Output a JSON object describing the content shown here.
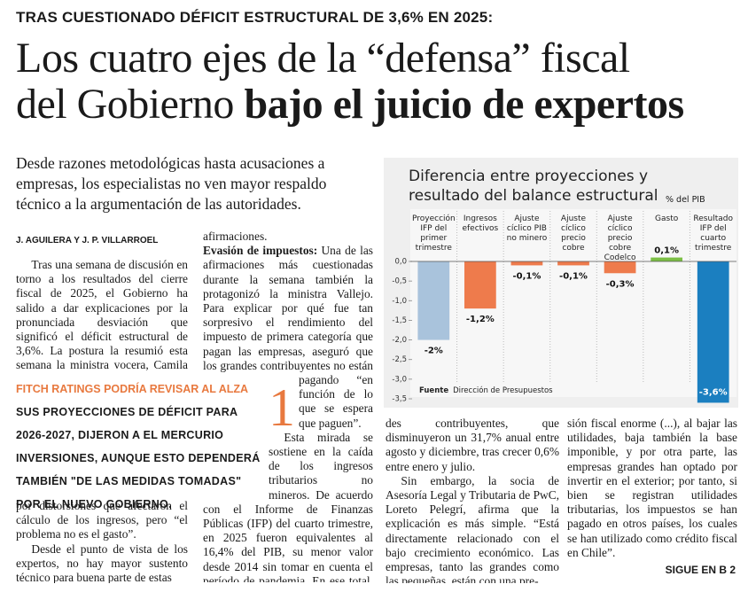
{
  "header": {
    "kicker": "TRAS CUESTIONADO DÉFICIT ESTRUCTURAL DE 3,6% EN 2025:",
    "headline": [
      "Los cuatro ejes de la “defensa” fiscal",
      "del Gobierno"
    ],
    "headline_bold": "bajo el juicio de expertos",
    "lead": "Desde razones metodológicas hasta acusaciones a empresas, los especialistas no ven mayor respaldo técnico a la argumentación de las autoridades.",
    "byline": "J. AGUILERA Y J. P. VILLARROEL"
  },
  "body": {
    "col1": [
      "Tras una semana de discusión en torno a los resultados del cierre fiscal de 2025, el Gobierno ha salido a dar explicaciones por la pronunciada desviación que significó el déficit estructural de 3,6%. La postura la resumió esta semana la ministra vocera, Camila Vallejo, quien resaltó que el déficit pasa"
    ],
    "col1_after_box": [
      "por distorsiones que afectaron el cálculo de los ingresos, pero “el problema no es el gasto”.",
      "Desde el punto de vista de los expertos, no hay mayor sustento técnico para buena parte de estas"
    ],
    "col2_start": "afirmaciones.",
    "point": {
      "number": "1",
      "title": "Evasión de impuestos:",
      "text": "Una de las afirmaciones más cuestionadas durante la semana también la protagonizó la ministra Vallejo. Para explicar por qué fue tan sorpresivo el rendimiento del impuesto de primera categoría que pagan las empresas, aseguró que los grandes contribuyentes no están pagando “en función de lo que se espera que paguen”."
    },
    "col2_rest": [
      "Esta mirada se sostiene en la caída de los ingresos tributarios no mineros. De acuerdo con el Informe de Finanzas Públicas (IFP) del cuarto trimestre, en 2025 fueron equivalentes al 16,4% del PIB, su menor valor desde 2014 sin tomar en cuenta el período de pandemia. En ese total, la mayor sorpresa fue la caída en los aportes de los gran-"
    ],
    "col3": [
      "des contribuyentes, que disminuyeron un 31,7% anual entre agosto y diciembre, tras crecer 0,6% entre enero y julio.",
      "Sin embargo, la socia de Asesoría Legal y Tributaria de PwC, Loreto Pelegrí, afirma que la explicación es más simple. “Está directamente relacionado con el bajo crecimiento económico. Las empresas, tanto las grandes como las pequeñas, están con una pre-"
    ],
    "col4": [
      "sión fiscal enorme (...), al bajar las utilidades, baja también la base imponible, y por otra parte, las empresas grandes han optado por invertir en el exterior; por tanto, si bien se registran utilidades tributarias, los impuestos se han pagado en otros países, los cuales se han utilizado como crédito fiscal en Chile”."
    ]
  },
  "box": {
    "title": "FITCH RATINGS PODRÍA REVISAR AL ALZA",
    "text": "SUS PROYECCIONES DE DÉFICIT PARA 2026-2027, DIJERON A EL MERCURIO INVERSIONES, AUNQUE ESTO DEPENDERÁ TAMBIÉN \"DE LAS MEDIDAS TOMADAS\" POR EL NUEVO GOBIERNO."
  },
  "footer": "SIGUE EN B 2",
  "chart_data": {
    "type": "bar",
    "title": "Diferencia entre proyecciones y resultado del balance estructural",
    "unit": "% del PIB",
    "categories": [
      "Proyección IFP del primer trimestre",
      "Ingresos efectivos",
      "Ajuste cíclico PIB no minero",
      "Ajuste cíclico precio cobre",
      "Ajuste cíclico precio cobre Codelco",
      "Gasto",
      "Resultado IFP del cuarto trimestre"
    ],
    "values": [
      -2,
      -1.2,
      -0.1,
      -0.1,
      -0.3,
      0.1,
      -3.6
    ],
    "value_labels": [
      "-2%",
      "-1,2%",
      "-0,1%",
      "-0,1%",
      "-0,3%",
      "0,1%",
      "-3,6%"
    ],
    "colors": [
      "#a9c3dc",
      "#ee7b4c",
      "#ee7b4c",
      "#ee7b4c",
      "#ee7b4c",
      "#7cbf45",
      "#1b7fc0"
    ],
    "ylim": [
      -3.5,
      0
    ],
    "yticks": [
      {
        "value": 0,
        "label": "0,0"
      },
      {
        "value": -0.5,
        "label": "-0,5"
      },
      {
        "value": -1,
        "label": "-1,0"
      },
      {
        "value": -1.5,
        "label": "-1,5"
      },
      {
        "value": -2,
        "label": "-2,0"
      },
      {
        "value": -2.5,
        "label": "-2,5"
      },
      {
        "value": -3,
        "label": "-3,0"
      },
      {
        "value": -3.5,
        "label": "-3,5"
      }
    ],
    "grid": false,
    "source_label": "Fuente",
    "source": "Dirección de Presupuestos"
  }
}
